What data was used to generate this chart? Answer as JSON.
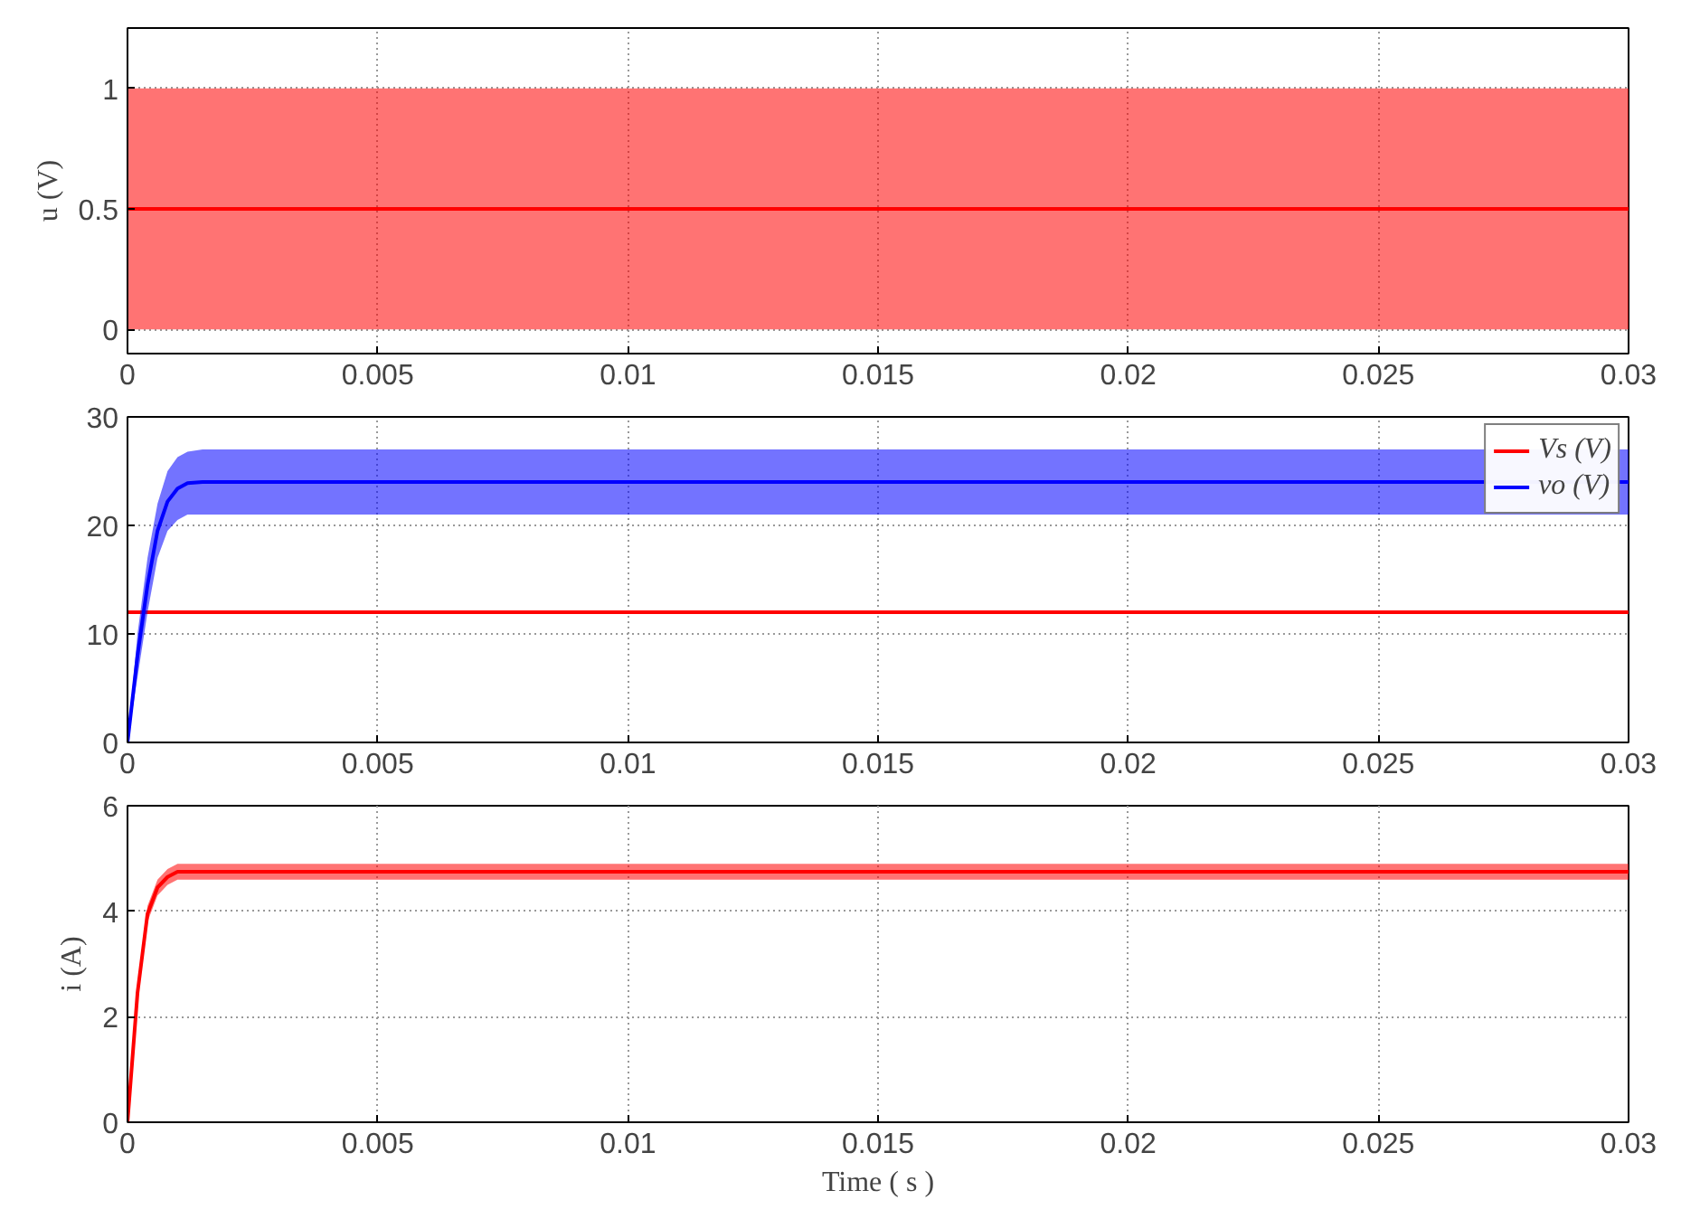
{
  "chart_data": [
    {
      "type": "line",
      "ylabel": "u (V)",
      "xlim": [
        0,
        0.03
      ],
      "ylim": [
        -0.1,
        1.25
      ],
      "xticks": [
        0,
        0.005,
        0.01,
        0.015,
        0.02,
        0.025,
        0.03
      ],
      "yticks": [
        0,
        0.5,
        1
      ],
      "grid": true,
      "series": [
        {
          "color": "#ff0000",
          "x": [
            0,
            0.03
          ],
          "values": [
            0.5,
            0.5
          ],
          "lower": [
            0,
            0
          ],
          "upper": [
            1,
            1
          ]
        }
      ]
    },
    {
      "type": "line",
      "xlim": [
        0,
        0.03
      ],
      "ylim": [
        0,
        30
      ],
      "xticks": [
        0,
        0.005,
        0.01,
        0.015,
        0.02,
        0.025,
        0.03
      ],
      "yticks": [
        0,
        10,
        20,
        30
      ],
      "grid": true,
      "legend": "top right",
      "series": [
        {
          "name": "Vs (V)",
          "color": "#ff0000",
          "x": [
            0,
            0.03
          ],
          "values": [
            12,
            12
          ]
        },
        {
          "name": "vo (V)",
          "color": "#0000ff",
          "x": [
            0,
            0.0002,
            0.0004,
            0.0006,
            0.0008,
            0.001,
            0.0012,
            0.0015,
            0.002,
            0.03
          ],
          "values": [
            0,
            8,
            14.5,
            19.5,
            22.2,
            23.4,
            23.9,
            24,
            24,
            24
          ],
          "lower": [
            0,
            6,
            12,
            17,
            19.5,
            20.5,
            21,
            21,
            21,
            21
          ],
          "upper": [
            0,
            10,
            17,
            22,
            25,
            26.3,
            26.8,
            27,
            27,
            27
          ]
        }
      ]
    },
    {
      "type": "line",
      "xlabel": "Time ( s )",
      "ylabel": "i (A)",
      "xlim": [
        0,
        0.03
      ],
      "ylim": [
        0,
        6
      ],
      "xticks": [
        0,
        0.005,
        0.01,
        0.015,
        0.02,
        0.025,
        0.03
      ],
      "yticks": [
        0,
        2,
        4,
        6
      ],
      "grid": true,
      "series": [
        {
          "color": "#ff0000",
          "x": [
            0,
            0.0002,
            0.0004,
            0.0006,
            0.0008,
            0.001,
            0.00125,
            0.03
          ],
          "values": [
            0,
            2.45,
            3.95,
            4.45,
            4.65,
            4.75,
            4.75,
            4.75
          ],
          "lower": [
            0,
            2.3,
            3.8,
            4.3,
            4.5,
            4.6,
            4.6,
            4.6
          ],
          "upper": [
            0,
            2.6,
            4.1,
            4.6,
            4.8,
            4.9,
            4.9,
            4.9
          ]
        }
      ]
    }
  ]
}
